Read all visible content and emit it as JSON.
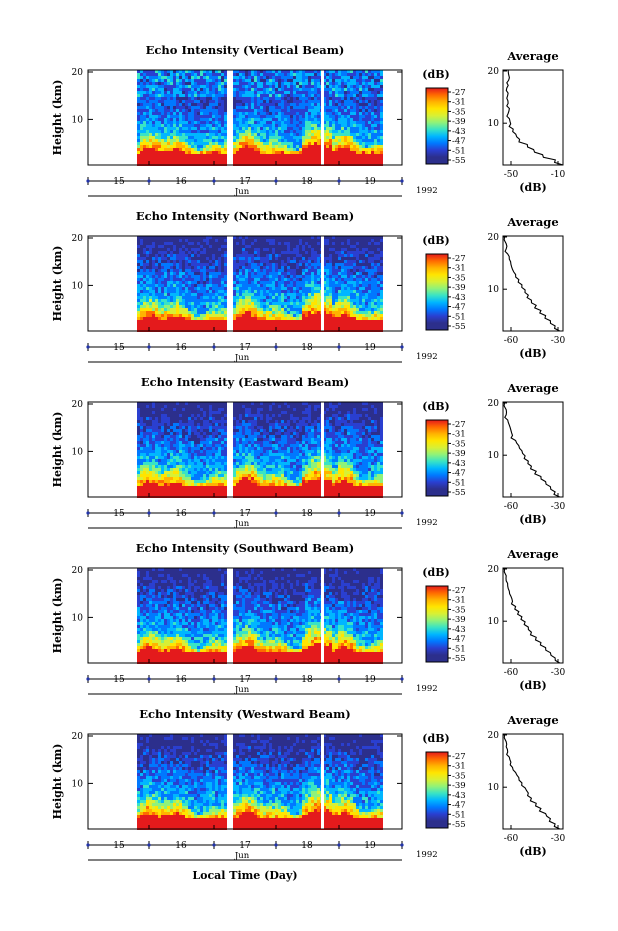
{
  "figure": {
    "xlabel": "Local Time (Day)"
  },
  "colorbar": {
    "unit": "(dB)",
    "ticks": [
      "-27",
      "-31",
      "-35",
      "-39",
      "-43",
      "-47",
      "-51",
      "-55"
    ],
    "colors": [
      "#7f0000",
      "#e41a1c",
      "#ff6a00",
      "#ffb300",
      "#ffe500",
      "#d8f035",
      "#8ff27a",
      "#39e3c5",
      "#00b6ff",
      "#0078ff",
      "#2a3fd0",
      "#2c2f8c"
    ]
  },
  "chart_data": [
    {
      "type": "heatmap",
      "title": "Echo Intensity (Vertical Beam)",
      "ylabel": "Height (km)",
      "y_ticks": [
        "20",
        "10"
      ],
      "x_ticks": [
        "15",
        "16",
        "17",
        "18",
        "19"
      ],
      "x_month": "Jun",
      "x_year": "1992",
      "ylim": [
        0,
        20
      ],
      "profile": {
        "title": "Average",
        "xlabel": "(dB)",
        "x_ticks": [
          "-50",
          "-10"
        ],
        "y_ticks": [
          "20",
          "10"
        ],
        "xlim": [
          -55,
          -8
        ],
        "ylim": [
          1.5,
          20
        ],
        "x": [
          -8,
          -14,
          -24,
          -31,
          -36,
          -42,
          -45,
          -47,
          -49,
          -50,
          -51,
          -50,
          -51,
          -52,
          -51,
          -52,
          -52,
          -50,
          -51
        ],
        "y": [
          1.5,
          2.5,
          3.5,
          4.5,
          5.5,
          6.5,
          7.5,
          8.5,
          9.5,
          10.5,
          11.5,
          12.5,
          13.5,
          14.5,
          15.5,
          16.5,
          17.5,
          18.5,
          20
        ]
      }
    },
    {
      "type": "heatmap",
      "title": "Echo Intensity (Northward Beam)",
      "ylabel": "Height (km)",
      "y_ticks": [
        "20",
        "10"
      ],
      "x_ticks": [
        "15",
        "16",
        "17",
        "18",
        "19"
      ],
      "x_month": "Jun",
      "x_year": "1992",
      "ylim": [
        0,
        20
      ],
      "profile": {
        "title": "Average",
        "xlabel": "(dB)",
        "x_ticks": [
          "-60",
          "-30"
        ],
        "y_ticks": [
          "20",
          "10"
        ],
        "xlim": [
          -63,
          -25
        ],
        "ylim": [
          1.5,
          20
        ],
        "x": [
          -27,
          -30,
          -33,
          -36,
          -39,
          -42,
          -45,
          -47,
          -49,
          -51,
          -53,
          -55,
          -57,
          -58,
          -59,
          -60,
          -61,
          -61,
          -62
        ],
        "y": [
          1.5,
          2.5,
          3.5,
          4.5,
          5.5,
          6.5,
          7.5,
          8.5,
          9.5,
          10.5,
          11.5,
          12.5,
          13.5,
          14.5,
          15.5,
          16.5,
          17.5,
          18.5,
          20
        ]
      }
    },
    {
      "type": "heatmap",
      "title": "Echo Intensity (Eastward Beam)",
      "ylabel": "Height (km)",
      "y_ticks": [
        "20",
        "10"
      ],
      "x_ticks": [
        "15",
        "16",
        "17",
        "18",
        "19"
      ],
      "x_month": "Jun",
      "x_year": "1992",
      "ylim": [
        0,
        20
      ],
      "profile": {
        "title": "Average",
        "xlabel": "(dB)",
        "x_ticks": [
          "-60",
          "-30"
        ],
        "y_ticks": [
          "20",
          "10"
        ],
        "xlim": [
          -63,
          -25
        ],
        "ylim": [
          1.5,
          20
        ],
        "x": [
          -27,
          -30,
          -33,
          -36,
          -39,
          -42,
          -45,
          -47,
          -49,
          -51,
          -53,
          -55,
          -57,
          -58,
          -59,
          -60,
          -61,
          -61,
          -62
        ],
        "y": [
          1.5,
          2.5,
          3.5,
          4.5,
          5.5,
          6.5,
          7.5,
          8.5,
          9.5,
          10.5,
          11.5,
          12.5,
          13.5,
          14.5,
          15.5,
          16.5,
          17.5,
          18.5,
          20
        ]
      }
    },
    {
      "type": "heatmap",
      "title": "Echo Intensity (Southward Beam)",
      "ylabel": "Height (km)",
      "y_ticks": [
        "20",
        "10"
      ],
      "x_ticks": [
        "15",
        "16",
        "17",
        "18",
        "19"
      ],
      "x_month": "Jun",
      "x_year": "1992",
      "ylim": [
        0,
        20
      ],
      "profile": {
        "title": "Average",
        "xlabel": "(dB)",
        "x_ticks": [
          "-60",
          "-30"
        ],
        "y_ticks": [
          "20",
          "10"
        ],
        "xlim": [
          -63,
          -25
        ],
        "ylim": [
          1.5,
          20
        ],
        "x": [
          -27,
          -30,
          -33,
          -36,
          -39,
          -42,
          -45,
          -47,
          -49,
          -51,
          -53,
          -55,
          -57,
          -58,
          -59,
          -60,
          -61,
          -61,
          -62
        ],
        "y": [
          1.5,
          2.5,
          3.5,
          4.5,
          5.5,
          6.5,
          7.5,
          8.5,
          9.5,
          10.5,
          11.5,
          12.5,
          13.5,
          14.5,
          15.5,
          16.5,
          17.5,
          18.5,
          20
        ]
      }
    },
    {
      "type": "heatmap",
      "title": "Echo Intensity (Westward Beam)",
      "ylabel": "Height (km)",
      "y_ticks": [
        "20",
        "10"
      ],
      "x_ticks": [
        "15",
        "16",
        "17",
        "18",
        "19"
      ],
      "x_month": "Jun",
      "x_year": "1992",
      "ylim": [
        0,
        20
      ],
      "profile": {
        "title": "Average",
        "xlabel": "(dB)",
        "x_ticks": [
          "-60",
          "-30"
        ],
        "y_ticks": [
          "20",
          "10"
        ],
        "xlim": [
          -63,
          -25
        ],
        "ylim": [
          1.5,
          20
        ],
        "x": [
          -27,
          -30,
          -33,
          -36,
          -39,
          -42,
          -45,
          -47,
          -49,
          -51,
          -53,
          -55,
          -57,
          -58,
          -59,
          -60,
          -61,
          -61,
          -62
        ],
        "y": [
          1.5,
          2.5,
          3.5,
          4.5,
          5.5,
          6.5,
          7.5,
          8.5,
          9.5,
          10.5,
          11.5,
          12.5,
          13.5,
          14.5,
          15.5,
          16.5,
          17.5,
          18.5,
          20
        ]
      }
    }
  ]
}
